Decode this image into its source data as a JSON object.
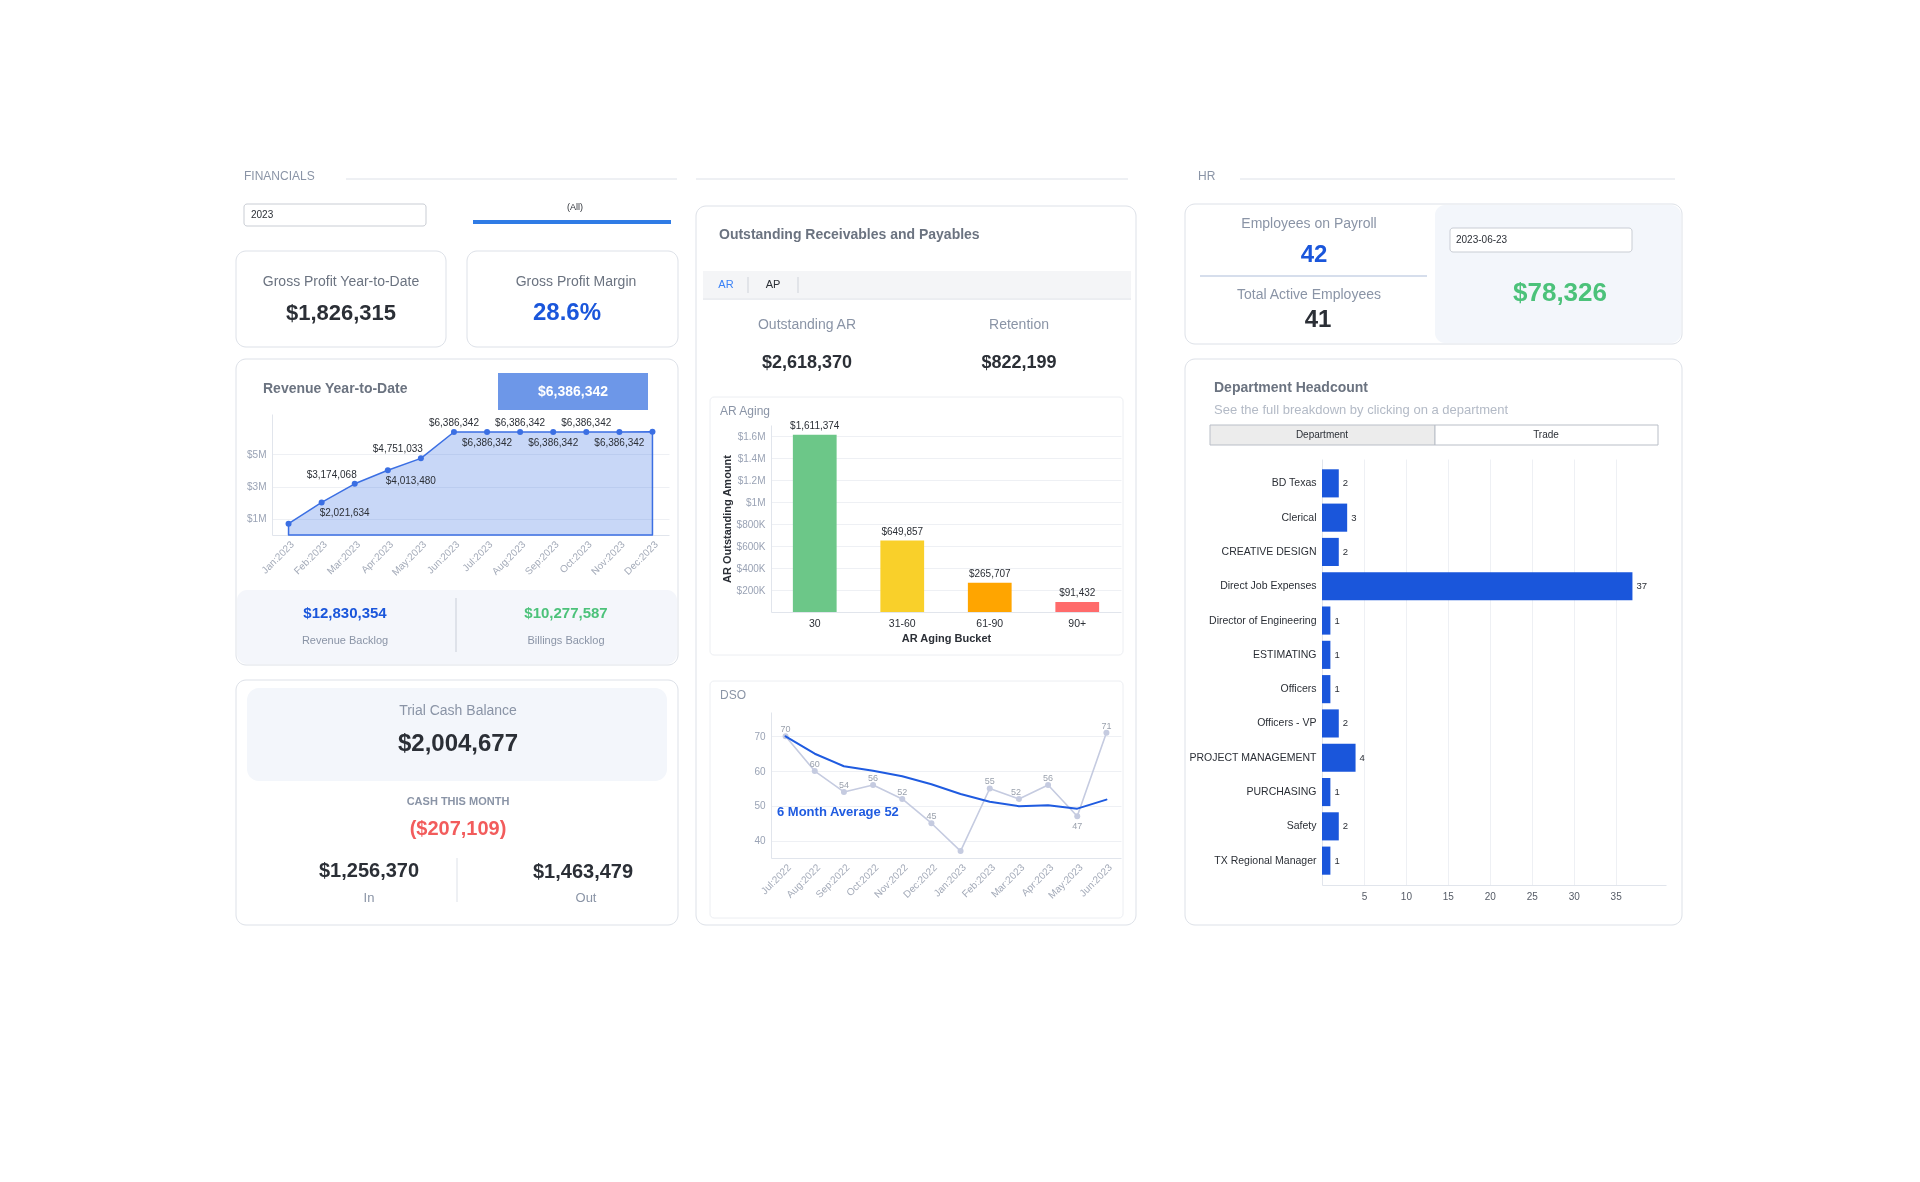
{
  "chart_data": [
    {
      "type": "other",
      "title": "FINANCIALS",
      "annotations": [
        "2023",
        "(All)",
        "Gross Profit Year-to-Date",
        "$1,826,315",
        "Gross Profit Margin",
        "28.6%"
      ]
    },
    {
      "type": "area",
      "title": "Revenue Year-to-Date",
      "annotations": [
        "$6,386,342"
      ],
      "categories": [
        "Jan:2023",
        "Feb:2023",
        "Mar:2023",
        "Apr:2023",
        "May:2023",
        "Jun:2023",
        "Jul:2023",
        "Aug:2023",
        "Sep:2023",
        "Oct:2023",
        "Nov:2023",
        "Dec:2023"
      ],
      "series": [
        {
          "color": "#3b6fe3",
          "values": [
            700000,
            2021634,
            3174068,
            4013480,
            4751033,
            6386342,
            6386342,
            6386342,
            6386342,
            6386342,
            6386342,
            6400000
          ],
          "value_labels": [
            null,
            "$2,021,634",
            "$3,174,068",
            "$4,013,480",
            "$4,751,033",
            "$6,386,342",
            "$6,386,342",
            "$6,386,342",
            "$6,386,342",
            "$6,386,342",
            "$6,386,342",
            null
          ]
        }
      ],
      "ylim": [
        0,
        7500000
      ],
      "yticks": [
        {
          "value": 1000000,
          "label": "$1M"
        },
        {
          "value": 3000000,
          "label": "$3M"
        },
        {
          "value": 5000000,
          "label": "$5M"
        }
      ],
      "grid": "y",
      "marker": "circle"
    },
    {
      "type": "other",
      "annotations": [
        "$12,830,354",
        "Revenue Backlog",
        "$10,277,587",
        "Billings Backlog"
      ]
    },
    {
      "type": "other",
      "title": "Trial Cash Balance",
      "annotations": [
        "$2,004,677",
        "CASH THIS MONTH",
        "($207,109)",
        "$1,256,370",
        "In",
        "$1,463,479",
        "Out"
      ]
    },
    {
      "type": "other",
      "title": "Outstanding Receivables and Payables",
      "annotations": [
        "AR",
        "AP",
        "Outstanding AR",
        "$2,618,370",
        "Retention",
        "$822,199"
      ]
    },
    {
      "type": "bar",
      "title": "AR Aging",
      "categories": [
        "30",
        "31-60",
        "61-90",
        "90+"
      ],
      "values": [
        1611374,
        649857,
        265707,
        91432
      ],
      "colors": [
        "#6cc788",
        "#f9d02a",
        "#ffa500",
        "#ff6b6b"
      ],
      "value_labels": [
        "$1,611,374",
        "$649,857",
        "$265,707",
        "$91,432"
      ],
      "xlabel": "AR Aging Bucket",
      "ylabel": "AR Outstanding Amount",
      "ylim": [
        0,
        1700000
      ],
      "yticks": [
        {
          "value": 200000,
          "label": "$200K"
        },
        {
          "value": 400000,
          "label": "$400K"
        },
        {
          "value": 600000,
          "label": "$600K"
        },
        {
          "value": 800000,
          "label": "$800K"
        },
        {
          "value": 1000000,
          "label": "$1M"
        },
        {
          "value": 1200000,
          "label": "$1.2M"
        },
        {
          "value": 1400000,
          "label": "$1.4M"
        },
        {
          "value": 1600000,
          "label": "$1.6M"
        }
      ],
      "grid": "y"
    },
    {
      "type": "line",
      "title": "DSO",
      "categories": [
        "Jul:2022",
        "Aug:2022",
        "Sep:2022",
        "Oct:2022",
        "Nov:2022",
        "Dec:2022",
        "Jan:2023",
        "Feb:2023",
        "Mar:2023",
        "Apr:2023",
        "May:2023",
        "Jun:2023"
      ],
      "series": [
        {
          "color": "#c5cbe0",
          "values": [
            70,
            60,
            54,
            56,
            52,
            45,
            37,
            55,
            52,
            56,
            47,
            71
          ],
          "value_labels": [
            "70",
            "60",
            "54",
            "56",
            "52",
            "45",
            null,
            "55",
            "52",
            "56",
            "47",
            "71"
          ]
        },
        {
          "name": "6 Month Average 52",
          "color": "#1f5be0",
          "values": [
            70,
            65,
            61.4,
            60.1,
            58.5,
            56.2,
            53.4,
            51.2,
            49.9,
            50.2,
            49.2,
            51.8
          ],
          "marker": "none"
        }
      ],
      "ylim": [
        35,
        77
      ],
      "yticks": [
        40,
        50,
        60,
        70
      ],
      "grid": "y",
      "marker": "circle"
    },
    {
      "type": "other",
      "title": "HR",
      "annotations": [
        "Employees on Payroll",
        "42",
        "Total Active Employees",
        "41",
        "2023-06-23",
        "$78,326"
      ]
    },
    {
      "type": "bar",
      "orientation": "horizontal",
      "title": "Department Headcount",
      "subtitle": "See the full breakdown by clicking on a department",
      "annotations": [
        "Department",
        "Trade"
      ],
      "categories": [
        "BD Texas",
        "Clerical",
        "CREATIVE DESIGN",
        "Direct Job Expenses",
        "Director of Engineering",
        "ESTIMATING",
        "Officers",
        "Officers - VP",
        "PROJECT MANAGEMENT",
        "PURCHASING",
        "Safety",
        "TX Regional Manager"
      ],
      "values": [
        2,
        3,
        2,
        37,
        1,
        1,
        1,
        2,
        4,
        1,
        2,
        1
      ],
      "color": "#1a56db",
      "xlim": [
        0,
        41
      ],
      "xticks": [
        5,
        10,
        15,
        20,
        25,
        30,
        35
      ],
      "grid": "x",
      "data_labels": true
    }
  ]
}
